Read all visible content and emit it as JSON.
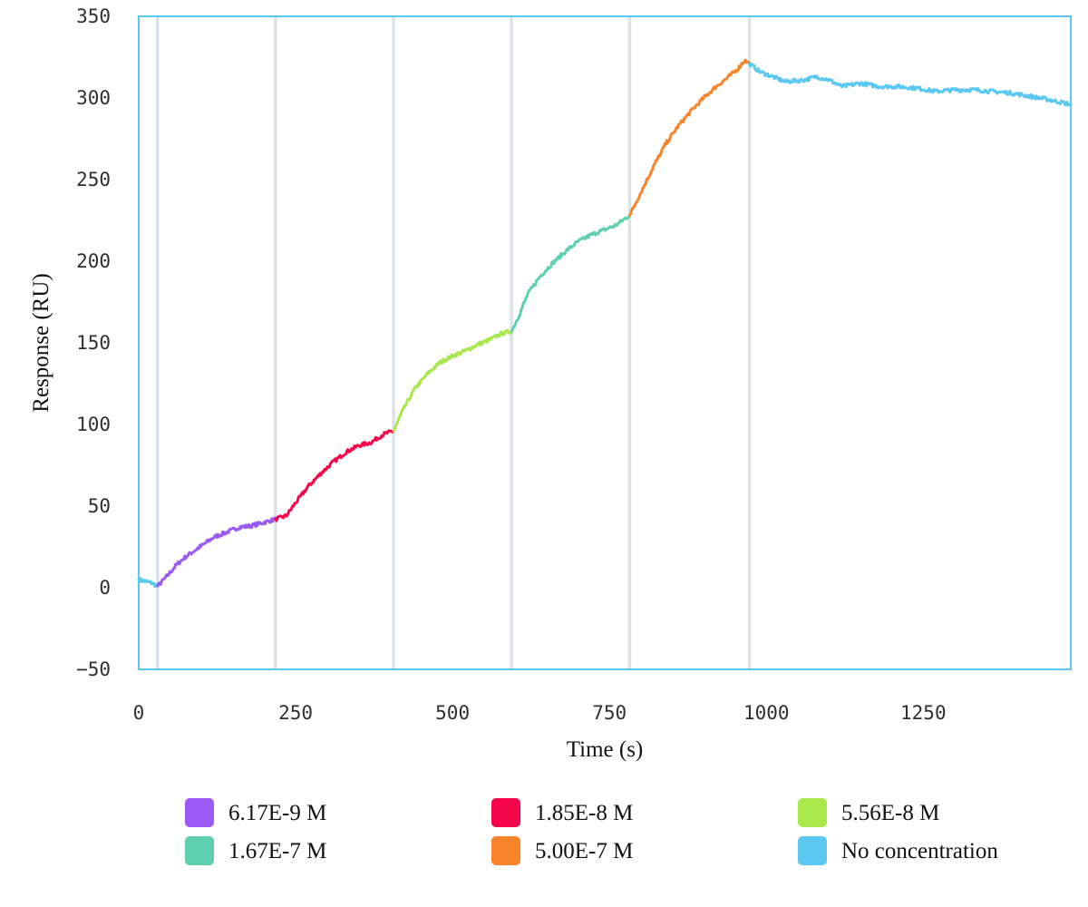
{
  "chart_data": {
    "type": "line",
    "title": "",
    "xlabel": "Time (s)",
    "ylabel": "Response (RU)",
    "xlim": [
      0,
      1485
    ],
    "ylim": [
      -50,
      350
    ],
    "xticks": [
      0,
      250,
      500,
      750,
      1000,
      1250
    ],
    "yticks": [
      -50,
      0,
      50,
      100,
      150,
      200,
      250,
      300,
      350
    ],
    "grid": false,
    "legend_position": "bottom",
    "injection_markers": [
      30,
      218,
      406,
      594,
      782,
      973
    ],
    "marker_color": "#dde3ea",
    "series": [
      {
        "name": "No concentration",
        "color": "#5ac8f0",
        "points": [
          [
            0,
            5
          ],
          [
            10,
            4
          ],
          [
            20,
            3
          ],
          [
            30,
            1
          ]
        ]
      },
      {
        "name": "6.17E-9 M",
        "color": "#9b59f5",
        "points": [
          [
            30,
            1
          ],
          [
            45,
            7
          ],
          [
            60,
            14
          ],
          [
            75,
            19
          ],
          [
            90,
            23
          ],
          [
            105,
            27
          ],
          [
            120,
            31
          ],
          [
            140,
            34
          ],
          [
            160,
            37
          ],
          [
            180,
            38
          ],
          [
            200,
            40
          ],
          [
            218,
            42
          ]
        ]
      },
      {
        "name": "1.85E-8 M",
        "color": "#f5054a",
        "points": [
          [
            218,
            42
          ],
          [
            235,
            44
          ],
          [
            250,
            52
          ],
          [
            270,
            62
          ],
          [
            290,
            70
          ],
          [
            310,
            77
          ],
          [
            330,
            83
          ],
          [
            350,
            87
          ],
          [
            370,
            89
          ],
          [
            390,
            94
          ],
          [
            406,
            96
          ]
        ]
      },
      {
        "name": "5.56E-8 M",
        "color": "#a8e84a",
        "points": [
          [
            406,
            96
          ],
          [
            420,
            108
          ],
          [
            440,
            122
          ],
          [
            460,
            131
          ],
          [
            480,
            138
          ],
          [
            500,
            142
          ],
          [
            520,
            145
          ],
          [
            540,
            149
          ],
          [
            560,
            152
          ],
          [
            580,
            156
          ],
          [
            594,
            157
          ]
        ]
      },
      {
        "name": "1.67E-7 M",
        "color": "#5ecfaf",
        "points": [
          [
            594,
            157
          ],
          [
            605,
            166
          ],
          [
            620,
            180
          ],
          [
            640,
            191
          ],
          [
            660,
            199
          ],
          [
            680,
            206
          ],
          [
            700,
            212
          ],
          [
            720,
            216
          ],
          [
            740,
            219
          ],
          [
            760,
            222
          ],
          [
            782,
            228
          ]
        ]
      },
      {
        "name": "5.00E-7 M",
        "color": "#f7842a",
        "points": [
          [
            782,
            228
          ],
          [
            800,
            242
          ],
          [
            820,
            258
          ],
          [
            840,
            272
          ],
          [
            860,
            283
          ],
          [
            880,
            292
          ],
          [
            900,
            300
          ],
          [
            920,
            307
          ],
          [
            940,
            313
          ],
          [
            955,
            318
          ],
          [
            965,
            323
          ],
          [
            973,
            321
          ]
        ]
      },
      {
        "name": "No concentration",
        "color": "#5ac8f0",
        "points": [
          [
            973,
            321
          ],
          [
            990,
            316
          ],
          [
            1010,
            313
          ],
          [
            1030,
            310
          ],
          [
            1060,
            311
          ],
          [
            1080,
            313
          ],
          [
            1100,
            311
          ],
          [
            1120,
            307
          ],
          [
            1150,
            309
          ],
          [
            1180,
            307
          ],
          [
            1210,
            307
          ],
          [
            1240,
            306
          ],
          [
            1270,
            304
          ],
          [
            1300,
            305
          ],
          [
            1330,
            305
          ],
          [
            1360,
            304
          ],
          [
            1390,
            303
          ],
          [
            1420,
            301
          ],
          [
            1450,
            299
          ],
          [
            1485,
            296
          ]
        ]
      }
    ]
  },
  "legend": {
    "items": [
      {
        "label": "6.17E-9 M",
        "color": "#9b59f5"
      },
      {
        "label": "1.85E-8 M",
        "color": "#f5054a"
      },
      {
        "label": "5.56E-8 M",
        "color": "#a8e84a"
      },
      {
        "label": "1.67E-7 M",
        "color": "#5ecfaf"
      },
      {
        "label": "5.00E-7 M",
        "color": "#f7842a"
      },
      {
        "label": "No concentration",
        "color": "#5ac8f0"
      }
    ]
  },
  "frame_color": "#5ac8f0"
}
